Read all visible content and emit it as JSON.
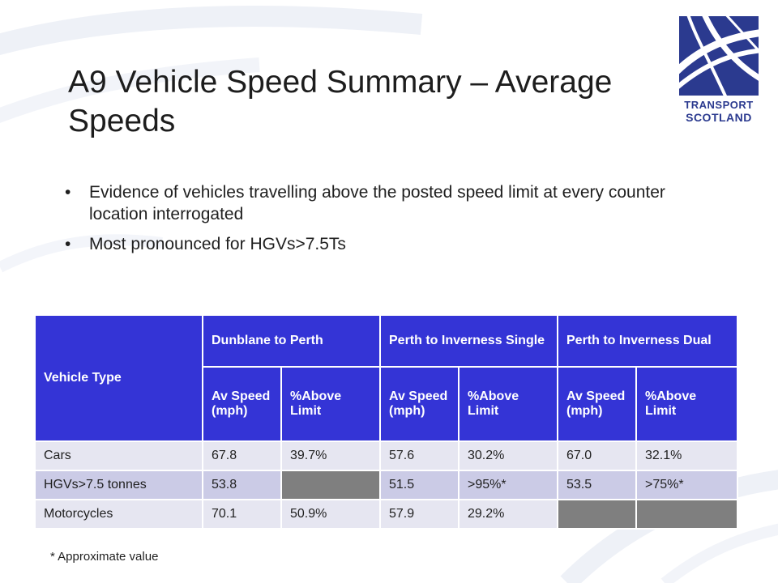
{
  "slide": {
    "title": "A9 Vehicle Speed Summary – Average Speeds",
    "bullets": [
      "Evidence of vehicles travelling above the posted speed limit at every counter location interrogated",
      "Most pronounced for HGVs>7.5Ts"
    ],
    "bullet_glyph": "•",
    "footnote": "* Approximate value"
  },
  "logo": {
    "line1": "TRANSPORT",
    "line2": "SCOTLAND",
    "color": "#2b3a8f"
  },
  "table": {
    "vehicle_type_header": "Vehicle Type",
    "groups": [
      "Dunblane to Perth",
      "Perth to Inverness Single",
      "Perth to Inverness Dual"
    ],
    "subheaders": [
      "Av Speed (mph)",
      "%Above Limit",
      "Av Speed (mph)",
      "%Above Limit",
      "Av Speed (mph)",
      "%Above Limit"
    ],
    "rows": [
      {
        "type": "Cars",
        "cells": [
          "67.8",
          "39.7%",
          "57.6",
          "30.2%",
          "67.0",
          "32.1%"
        ]
      },
      {
        "type": "HGVs>7.5 tonnes",
        "cells": [
          "53.8",
          "",
          "51.5",
          ">95%*",
          "53.5",
          ">75%*"
        ]
      },
      {
        "type": "Motorcycles",
        "cells": [
          "70.1",
          "50.9%",
          "57.9",
          "29.2%",
          "",
          ""
        ]
      }
    ],
    "colors": {
      "header": "#3434d6",
      "row_light": "#e6e6f1",
      "row_dark": "#cbcbe6",
      "blank_cell": "#7f7f7f"
    }
  }
}
